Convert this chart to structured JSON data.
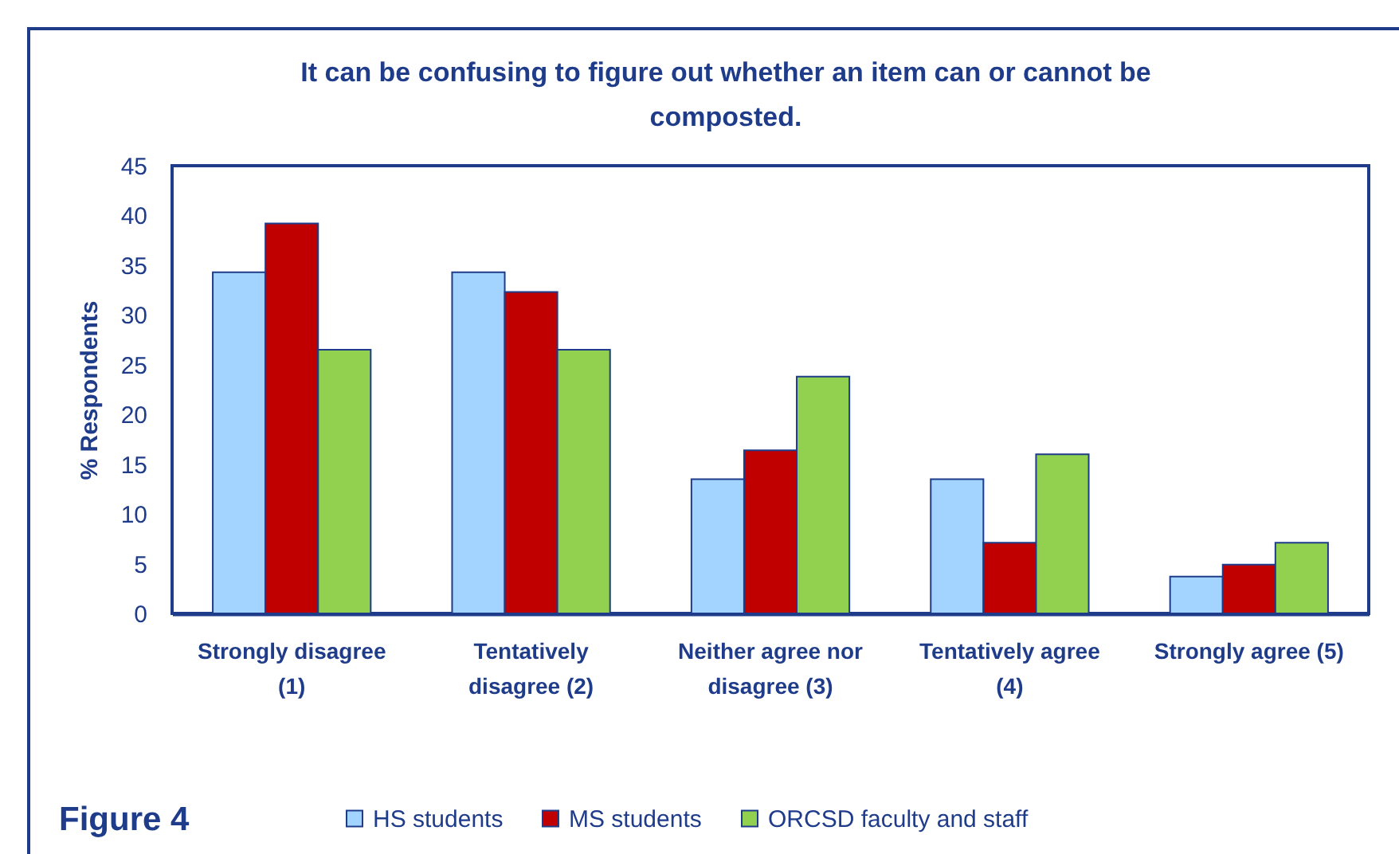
{
  "chart_data": {
    "type": "bar",
    "title": "It can be confusing to figure out whether an item can or cannot be composted.",
    "ylabel": "% Respondents",
    "categories": [
      "Strongly disagree (1)",
      "Tentatively disagree (2)",
      "Neither agree nor disagree (3)",
      "Tentatively agree (4)",
      "Strongly agree (5)"
    ],
    "series": [
      {
        "name": "HS students",
        "color": "#a3d4ff",
        "values": [
          34.3,
          34.3,
          13.5,
          13.5,
          3.7
        ]
      },
      {
        "name": "MS students",
        "color": "#c00000",
        "values": [
          39.2,
          32.3,
          16.4,
          7.1,
          4.9
        ]
      },
      {
        "name": "ORCSD faculty and staff",
        "color": "#92d050",
        "values": [
          26.5,
          26.5,
          23.8,
          16.0,
          7.1
        ]
      }
    ],
    "ylim": [
      0,
      45
    ],
    "yticks": [
      0,
      5,
      10,
      15,
      20,
      25,
      30,
      35,
      40,
      45
    ],
    "legend": "bottom",
    "annotations": [
      "Figure 4"
    ]
  }
}
